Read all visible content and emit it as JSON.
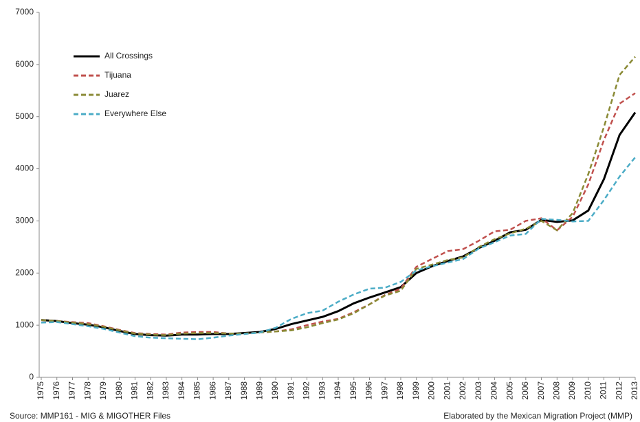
{
  "chart_data": {
    "type": "line",
    "x": [
      1975,
      1976,
      1977,
      1978,
      1979,
      1980,
      1981,
      1982,
      1983,
      1984,
      1985,
      1986,
      1987,
      1988,
      1989,
      1990,
      1991,
      1992,
      1993,
      1994,
      1995,
      1996,
      1997,
      1998,
      1999,
      2000,
      2001,
      2002,
      2003,
      2004,
      2005,
      2006,
      2007,
      2008,
      2009,
      2010,
      2011,
      2012,
      2013
    ],
    "xlim": [
      1975,
      2013
    ],
    "xticks": [
      1975,
      1976,
      1977,
      1978,
      1979,
      1980,
      1981,
      1982,
      1983,
      1984,
      1985,
      1986,
      1987,
      1988,
      1989,
      1990,
      1991,
      1992,
      1993,
      1994,
      1995,
      1996,
      1997,
      1998,
      1999,
      2000,
      2001,
      2002,
      2003,
      2004,
      2005,
      2006,
      2007,
      2008,
      2009,
      2010,
      2011,
      2012,
      2013
    ],
    "ylim": [
      0,
      7000
    ],
    "yticks": [
      0,
      1000,
      2000,
      3000,
      4000,
      5000,
      6000,
      7000
    ],
    "legend": "upper left",
    "series": [
      {
        "name": "All Crossings",
        "color": "#000000",
        "dash": false,
        "values": [
          1100,
          1080,
          1040,
          1010,
          960,
          890,
          830,
          810,
          800,
          820,
          820,
          830,
          830,
          850,
          870,
          930,
          1020,
          1090,
          1160,
          1270,
          1420,
          1530,
          1630,
          1730,
          2000,
          2130,
          2230,
          2320,
          2480,
          2620,
          2780,
          2830,
          3020,
          2980,
          3010,
          3200,
          3800,
          4650,
          5080
        ]
      },
      {
        "name": "Tijuana",
        "color": "#c0504d",
        "dash": true,
        "values": [
          1100,
          1080,
          1060,
          1040,
          980,
          910,
          850,
          830,
          820,
          860,
          870,
          870,
          840,
          840,
          860,
          880,
          920,
          1000,
          1070,
          1120,
          1250,
          1400,
          1580,
          1700,
          2120,
          2270,
          2420,
          2460,
          2620,
          2800,
          2830,
          3000,
          3050,
          2820,
          3080,
          3700,
          4550,
          5250,
          5450
        ]
      },
      {
        "name": "Juarez",
        "color": "#8a8a35",
        "dash": true,
        "values": [
          1100,
          1080,
          1050,
          1020,
          970,
          900,
          840,
          820,
          810,
          840,
          850,
          850,
          840,
          840,
          860,
          880,
          900,
          960,
          1040,
          1110,
          1230,
          1400,
          1570,
          1660,
          2080,
          2160,
          2250,
          2300,
          2500,
          2650,
          2760,
          2850,
          3000,
          2820,
          3150,
          3900,
          4800,
          5800,
          6150
        ]
      },
      {
        "name": "Everywhere Else",
        "color": "#4bacc6",
        "dash": true,
        "values": [
          1050,
          1060,
          1020,
          980,
          930,
          860,
          790,
          760,
          750,
          740,
          730,
          760,
          800,
          830,
          860,
          950,
          1120,
          1230,
          1280,
          1450,
          1590,
          1700,
          1720,
          1830,
          2050,
          2130,
          2200,
          2270,
          2470,
          2590,
          2720,
          2750,
          3040,
          3020,
          2990,
          3000,
          3400,
          3850,
          4220
        ]
      }
    ],
    "source": "Source: MMP161 - MIG & MIGOTHER Files",
    "credit": "Elaborated by the Mexican Migration Project (MMP)"
  }
}
